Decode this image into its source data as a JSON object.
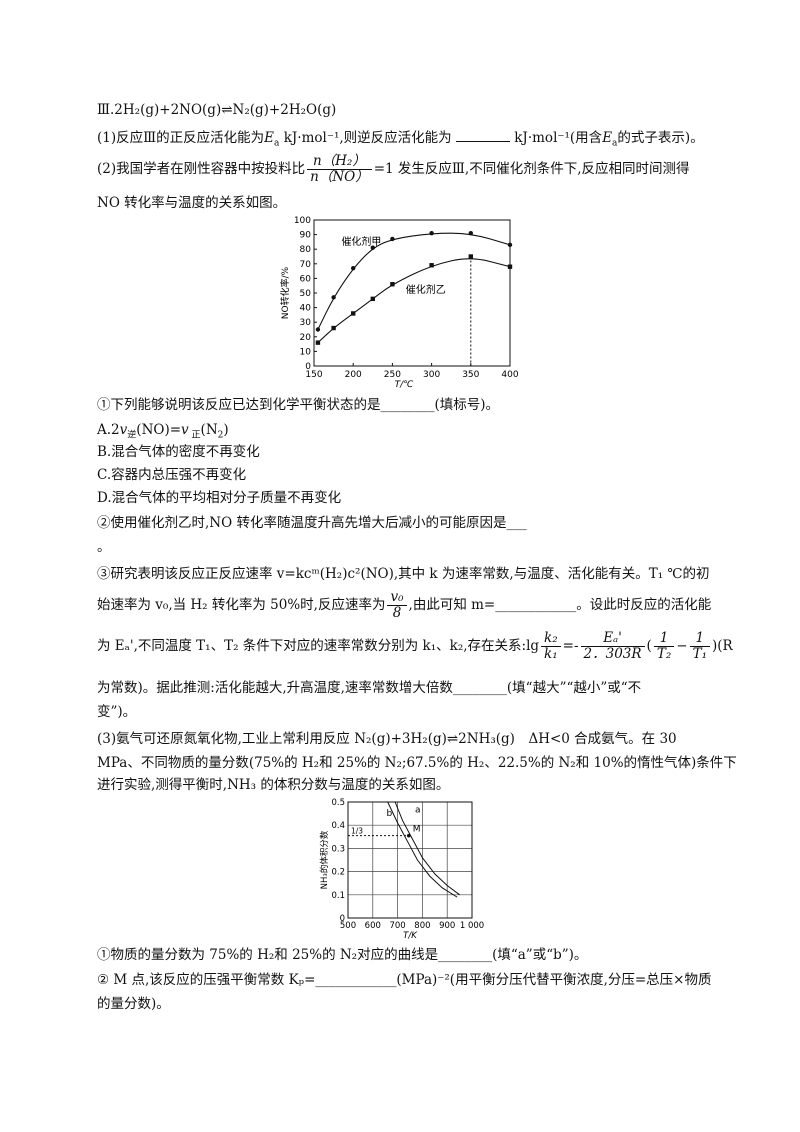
{
  "q": {
    "eq3": "Ⅲ.2H₂(g)+2NO(g)⇌N₂(g)+2H₂O(g)",
    "p1": "(1)反应Ⅲ的正反应活化能为",
    "p1b": "kJ·mol⁻¹,则逆反应活化能为",
    "p1c": "kJ·mol⁻¹(用含",
    "p1d": "的式子表示)。",
    "p2a": "(2)我国学者在刚性容器中按投料比",
    "p2num": "n（H₂）",
    "p2den": "n（NO）",
    "p2b": "=1 发生反应Ⅲ,不同催化剂条件下,反应相同时间测得",
    "p2c": "NO 转化率与温度的关系如图。",
    "s1": "①下列能够说明该反应已达到化学平衡状态的是________(填标号)。",
    "optA": "A.2v逆(NO)=v正(N₂)",
    "optB": "B.混合气体的密度不再变化",
    "optC": "C.容器内总压强不再变化",
    "optD": "D.混合气体的平均相对分子质量不再变化",
    "s2": "②使用催化剂乙时,NO 转化率随温度升高先增大后减小的可能原因是___",
    "s2b": "。",
    "s3a": "③研究表明该反应正反应速率 v=kcᵐ(H₂)c²(NO),其中 k 为速率常数,与温度、活化能有关。T₁ ℃的初",
    "s3b": "始速率为 v₀,当 H₂ 转化率为 50%时,反应速率为",
    "s3bnum": "v₀",
    "s3bden": "8",
    "s3c": ",由此可知 m=____________。设此时反应的活化能",
    "s3d": "为 Eₐ',不同温度 T₁、T₂ 条件下对应的速率常数分别为 k₁、k₂,存在关系:lg",
    "s3dnum": "k₂",
    "s3dden": "k₁",
    "s3e": "=-",
    "s3enum": "Eₐ'",
    "s3eden": "2．303R",
    "s3f1num": "1",
    "s3f1den": "T₂",
    "s3f2num": "1",
    "s3f2den": "T₁",
    "s3g": "(R",
    "s3h": "为常数)。据此推测:活化能越大,升高温度,速率常数增大倍数________(填“越大”“越小”或“不",
    "s3i": "变”)。",
    "p3a": "(3)氨气可还原氮氧化物,工业上常利用反应 N₂(g)+3H₂(g)⇌2NH₃(g)　ΔH<0 合成氨气。在 30",
    "p3b": "MPa、不同物质的量分数(75%的 H₂和 25%的 N₂;67.5%的 H₂、22.5%的 N₂和 10%的惰性气体)条件下",
    "p3c": "进行实验,测得平衡时,NH₃ 的体积分数与温度的关系如图。",
    "t1": "①物质的量分数为 75%的 H₂和 25%的 N₂对应的曲线是________(填“a”或“b”)。",
    "t2": "② M 点,该反应的压强平衡常数 Kₚ=____________(MPa)⁻²(用平衡分压代替平衡浓度,分压=总压×物质",
    "t2b": "的量分数)。"
  },
  "chart_data": [
    {
      "type": "line",
      "xlabel": "T/℃",
      "ylabel": "NO转化率/%",
      "xlim": [
        150,
        400
      ],
      "ylim": [
        0,
        100
      ],
      "xticks": [
        "150",
        "200",
        "250",
        "300",
        "350",
        "400"
      ],
      "yticks": [
        "0",
        "10",
        "20",
        "30",
        "40",
        "50",
        "60",
        "70",
        "80",
        "90",
        "100"
      ],
      "series": [
        {
          "name": "催化剂甲",
          "marker": "circle",
          "x": [
            155,
            175,
            200,
            225,
            250,
            300,
            350,
            400
          ],
          "y": [
            25,
            47,
            67,
            81,
            87,
            91,
            91,
            83
          ]
        },
        {
          "name": "催化剂乙",
          "marker": "square",
          "x": [
            155,
            175,
            200,
            225,
            250,
            300,
            350,
            400
          ],
          "y": [
            16,
            26,
            36,
            46,
            56,
            69,
            75,
            68
          ]
        }
      ],
      "annotation": "dashed line at 350"
    },
    {
      "type": "line",
      "xlabel": "T/K",
      "ylabel": "NH₃的体积分数",
      "xlim": [
        500,
        1000
      ],
      "ylim": [
        0,
        0.5
      ],
      "xticks": [
        "500",
        "600",
        "700",
        "800",
        "900",
        "1 000"
      ],
      "yticks": [
        "0",
        "0.1",
        "0.2",
        "0.3",
        "0.4",
        "0.5"
      ],
      "grid": true,
      "series": [
        {
          "name": "a",
          "x": [
            690,
            720,
            760,
            800,
            850,
            900,
            950
          ],
          "y": [
            0.5,
            0.42,
            0.34,
            0.26,
            0.19,
            0.14,
            0.1
          ]
        },
        {
          "name": "b",
          "x": [
            660,
            700,
            740,
            780,
            830,
            880,
            940
          ],
          "y": [
            0.5,
            0.41,
            0.33,
            0.25,
            0.18,
            0.13,
            0.09
          ]
        }
      ],
      "point": {
        "label": "M",
        "value": "1/3"
      }
    }
  ]
}
